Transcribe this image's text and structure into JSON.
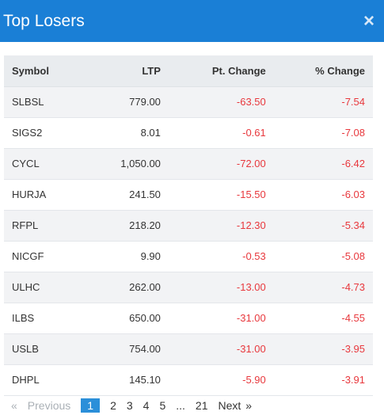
{
  "header": {
    "title": "Top Losers",
    "close_icon": "×"
  },
  "table": {
    "columns": [
      "Symbol",
      "LTP",
      "Pt. Change",
      "% Change"
    ],
    "rows": [
      [
        "SLBSL",
        "779.00",
        "-63.50",
        "-7.54"
      ],
      [
        "SIGS2",
        "8.01",
        "-0.61",
        "-7.08"
      ],
      [
        "CYCL",
        "1,050.00",
        "-72.00",
        "-6.42"
      ],
      [
        "HURJA",
        "241.50",
        "-15.50",
        "-6.03"
      ],
      [
        "RFPL",
        "218.20",
        "-12.30",
        "-5.34"
      ],
      [
        "NICGF",
        "9.90",
        "-0.53",
        "-5.08"
      ],
      [
        "ULHC",
        "262.00",
        "-13.00",
        "-4.73"
      ],
      [
        "ILBS",
        "650.00",
        "-31.00",
        "-4.55"
      ],
      [
        "USLB",
        "754.00",
        "-31.00",
        "-3.95"
      ],
      [
        "DHPL",
        "145.10",
        "-5.90",
        "-3.91"
      ]
    ],
    "negative_color": "#e8383d"
  },
  "pagination": {
    "first_symbol": "«",
    "previous": "Previous",
    "pages": [
      "1",
      "2",
      "3",
      "4",
      "5"
    ],
    "active": "1",
    "ellipsis": "...",
    "last": "21",
    "next": "Next",
    "next_symbol": "»"
  }
}
